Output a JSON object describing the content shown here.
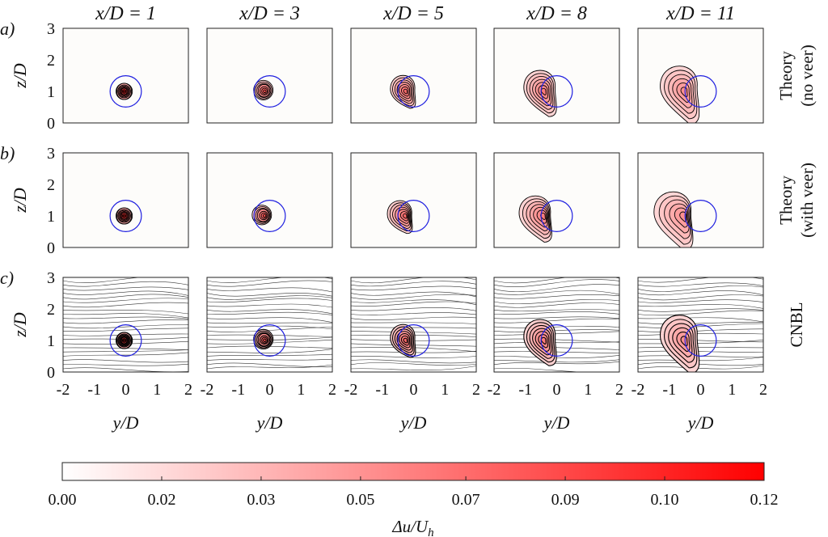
{
  "chart_data": {
    "type": "heatmap",
    "columns": [
      "x/D = 1",
      "x/D = 3",
      "x/D = 5",
      "x/D = 8",
      "x/D = 11"
    ],
    "column_symbol": "x/D",
    "column_values": [
      "1",
      "3",
      "5",
      "8",
      "11"
    ],
    "rows": [
      {
        "panel_label": "a)",
        "label_lines": [
          "Theory",
          "(no veer)"
        ],
        "streamlines": false,
        "veer": false
      },
      {
        "panel_label": "b)",
        "label_lines": [
          "Theory",
          "(with veer)"
        ],
        "streamlines": false,
        "veer": true
      },
      {
        "panel_label": "c)",
        "label_lines": [
          "CNBL"
        ],
        "streamlines": true,
        "veer": true
      }
    ],
    "xlabel": "y/D",
    "ylabel": "z/D",
    "xlim": [
      -2,
      2
    ],
    "ylim": [
      0,
      3
    ],
    "xticks": [
      "-2",
      "-1",
      "0",
      "1",
      "2"
    ],
    "yticks": [
      "0",
      "1",
      "2",
      "3"
    ],
    "rotor": {
      "center_y": 0,
      "center_z": 1,
      "diameter": 1,
      "color": "#2020e0"
    },
    "wake_centers_y": [
      -0.05,
      -0.15,
      -0.25,
      -0.4,
      -0.5
    ],
    "colorbar": {
      "label": "Δu/U_h",
      "label_main": "Δu/U",
      "label_sub": "h",
      "ticks": [
        "0.00",
        "0.02",
        "0.03",
        "0.05",
        "0.07",
        "0.09",
        "0.10",
        "0.12"
      ],
      "tick_values": [
        0.0,
        0.017,
        0.034,
        0.051,
        0.069,
        0.086,
        0.103,
        0.12
      ],
      "range": [
        0,
        0.12
      ],
      "color_low": "#ffffff",
      "color_high": "#ff0000"
    }
  }
}
